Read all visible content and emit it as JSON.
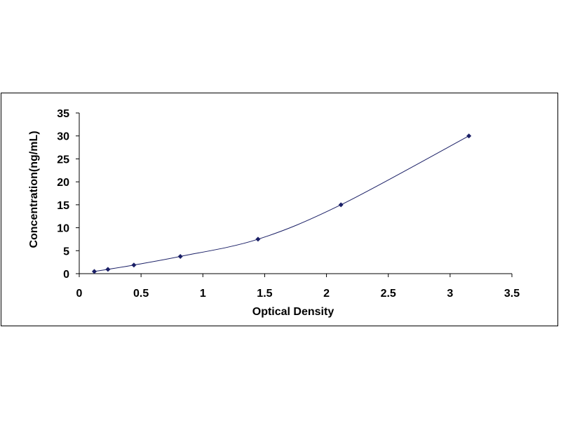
{
  "chart_data": {
    "type": "scatter",
    "title": "",
    "xlabel": "Optical Density",
    "ylabel": "Concentration(ng/mL)",
    "xlim": [
      0,
      3.5
    ],
    "ylim": [
      0,
      35
    ],
    "x_ticks": [
      "0",
      "0.5",
      "1",
      "1.5",
      "2",
      "2.5",
      "3",
      "3.5"
    ],
    "y_ticks": [
      "0",
      "5",
      "10",
      "15",
      "20",
      "25",
      "30",
      "35"
    ],
    "grid": false,
    "legend": "none",
    "series": [
      {
        "x": [
          0.122,
          0.232,
          0.442,
          0.818,
          1.446,
          2.117,
          3.152
        ],
        "y": [
          0.47,
          0.94,
          1.88,
          3.75,
          7.5,
          15,
          30
        ],
        "marker": "diamond",
        "line": "smooth"
      }
    ],
    "colors": {
      "marker": "#1a1f66",
      "line": "#1a1f66",
      "axis": "#000000"
    }
  }
}
